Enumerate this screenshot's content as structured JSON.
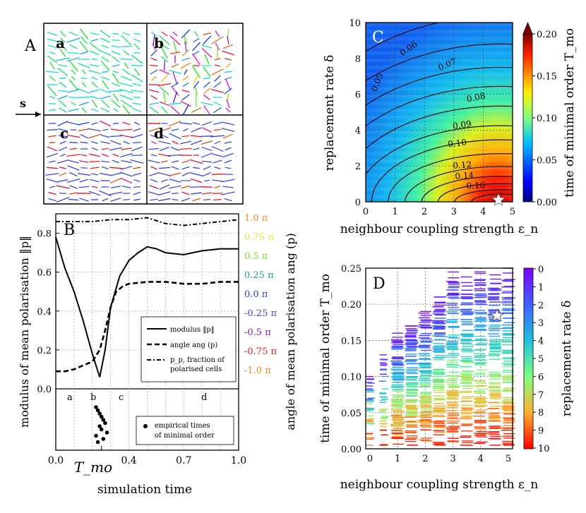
{
  "panelA": {
    "label": "A",
    "arrow_label": "s",
    "subpanels": [
      "a",
      "b",
      "c",
      "d"
    ]
  },
  "panelB": {
    "label": "B",
    "ylabel_left": "modulus of mean polarisation ‖p‖",
    "ylabel_right": "angle of mean polarisation ang (p)",
    "xlabel": "simulation time",
    "tmo_label": "T_mo",
    "x_ticks": [
      "0.0",
      "0.4",
      "0.7",
      "1.0"
    ],
    "y_ticks": [
      "0.0",
      "0.2",
      "0.4",
      "0.6",
      "0.8"
    ],
    "right_ticks": [
      {
        "label": "1.0 π",
        "color": "#f08a24"
      },
      {
        "label": "0.75 π",
        "color": "#f0e030"
      },
      {
        "label": "0.5 π",
        "color": "#7adf20"
      },
      {
        "label": "0.25 π",
        "color": "#1f9a8a"
      },
      {
        "label": "0.0 π",
        "color": "#2040e0"
      },
      {
        "label": "-0.25 π",
        "color": "#4a3fd0"
      },
      {
        "label": "-0.5 π",
        "color": "#7a1fb0"
      },
      {
        "label": "-0.75 π",
        "color": "#e02020"
      },
      {
        "label": "-1.0 π",
        "color": "#f08a24"
      }
    ],
    "phase_labels": [
      "a",
      "b",
      "c",
      "d"
    ],
    "legend": {
      "modulus": "modulus ‖p‖",
      "angle": "angle ang (p)",
      "frac1": "p_p, fraction of",
      "frac2": "polarised cells"
    },
    "legend2": {
      "line1": "empirical times",
      "line2": "of minimal order"
    }
  },
  "panelC": {
    "label": "C",
    "xlabel": "neighbour coupling strength ε_n",
    "ylabel": "replacement rate δ",
    "colorbar_label": "time of minimal order T_mo",
    "x_ticks": [
      "0",
      "1",
      "2",
      "3",
      "4",
      "5"
    ],
    "y_ticks": [
      "0",
      "2",
      "4",
      "6",
      "8",
      "10"
    ],
    "colorbar_ticks": [
      "0.00",
      "0.05",
      "0.10",
      "0.15",
      "0.20"
    ],
    "contour_labels": [
      "0.05",
      "0.06",
      "0.07",
      "0.08",
      "0.09",
      "0.10",
      "0.12",
      "0.14",
      "0.16"
    ]
  },
  "panelD": {
    "label": "D",
    "xlabel": "neighbour coupling strength ε_n",
    "ylabel": "time of minimal order T_mo",
    "colorbar_label": "replacement rate δ",
    "x_ticks": [
      "0",
      "1",
      "2",
      "3",
      "4",
      "5"
    ],
    "y_ticks": [
      "0.00",
      "0.05",
      "0.10",
      "0.15",
      "0.20",
      "0.25"
    ],
    "colorbar_ticks": [
      "0",
      "1",
      "2",
      "3",
      "4",
      "5",
      "6",
      "7",
      "8",
      "9",
      "10"
    ]
  },
  "chart_data": [
    {
      "type": "line",
      "title": "B",
      "xlabel": "simulation time",
      "ylabel": "modulus of mean polarisation",
      "xlim": [
        0,
        1
      ],
      "ylim": [
        0,
        0.9
      ],
      "series": [
        {
          "name": "modulus ‖p‖",
          "x": [
            0,
            0.05,
            0.1,
            0.15,
            0.2,
            0.24,
            0.27,
            0.3,
            0.35,
            0.4,
            0.45,
            0.5,
            0.55,
            0.6,
            0.7,
            0.8,
            0.9,
            1.0
          ],
          "values": [
            0.78,
            0.62,
            0.5,
            0.35,
            0.18,
            0.06,
            0.2,
            0.42,
            0.58,
            0.66,
            0.7,
            0.73,
            0.72,
            0.7,
            0.69,
            0.71,
            0.72,
            0.72
          ]
        },
        {
          "name": "angle ang (p)",
          "x": [
            0,
            0.05,
            0.1,
            0.15,
            0.2,
            0.24,
            0.27,
            0.3,
            0.33,
            0.37,
            0.4,
            0.5,
            0.6,
            0.7,
            0.8,
            0.9,
            1.0
          ],
          "values": [
            0.09,
            0.09,
            0.1,
            0.12,
            0.14,
            0.2,
            0.3,
            0.42,
            0.5,
            0.53,
            0.54,
            0.55,
            0.55,
            0.54,
            0.54,
            0.55,
            0.55
          ]
        },
        {
          "name": "p_p, fraction of polarised cells",
          "x": [
            0,
            0.1,
            0.2,
            0.3,
            0.4,
            0.5,
            0.6,
            0.7,
            0.8,
            0.9,
            1.0
          ],
          "values": [
            0.86,
            0.86,
            0.86,
            0.87,
            0.87,
            0.88,
            0.85,
            0.84,
            0.85,
            0.86,
            0.87
          ]
        }
      ],
      "empirical_times": [
        0.22,
        0.23,
        0.24,
        0.25,
        0.26,
        0.27,
        0.24,
        0.25,
        0.28,
        0.22,
        0.26,
        0.23
      ]
    },
    {
      "type": "heatmap",
      "title": "C",
      "xlabel": "neighbour coupling strength ε_n",
      "ylabel": "replacement rate δ",
      "xlim": [
        0,
        5
      ],
      "ylim": [
        0,
        10
      ],
      "zlim": [
        0,
        0.2
      ],
      "contour_levels": [
        0.05,
        0.06,
        0.07,
        0.08,
        0.09,
        0.1,
        0.11,
        0.12,
        0.13,
        0.14,
        0.15,
        0.16,
        0.17,
        0.18
      ],
      "optimum_star": {
        "x": 4.5,
        "y": 0.2
      }
    },
    {
      "type": "scatter",
      "title": "D",
      "xlabel": "neighbour coupling strength ε_n",
      "ylabel": "time of minimal order T_mo",
      "xlim": [
        0,
        5
      ],
      "ylim": [
        0,
        0.25
      ],
      "x_columns": [
        0,
        0.5,
        1,
        1.5,
        2,
        2.5,
        3,
        3.5,
        4,
        4.5,
        5
      ],
      "column_max": [
        0.1,
        0.13,
        0.16,
        0.17,
        0.19,
        0.21,
        0.25,
        0.25,
        0.25,
        0.25,
        0.25
      ],
      "star": {
        "x": 4.5,
        "y": 0.185
      }
    }
  ]
}
